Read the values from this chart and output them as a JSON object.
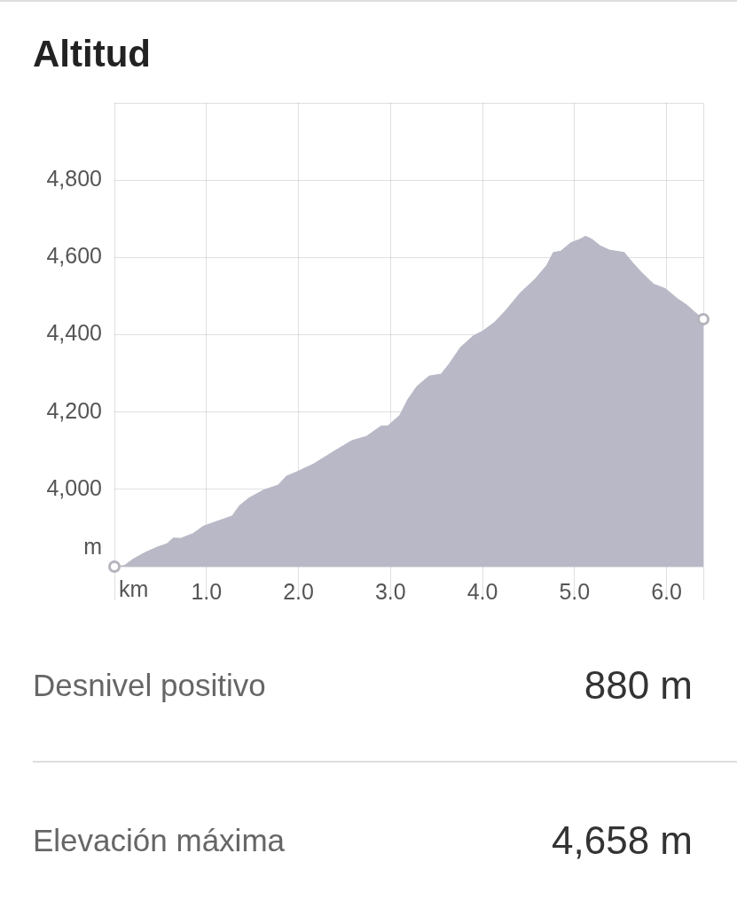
{
  "chart_data": {
    "type": "area",
    "title": "Altitud",
    "xlabel": "km",
    "ylabel": "m",
    "x": [
      0,
      0.11,
      0.2,
      0.33,
      0.46,
      0.57,
      0.64,
      0.72,
      0.85,
      0.97,
      1.1,
      1.28,
      1.36,
      1.46,
      1.62,
      1.78,
      1.87,
      1.97,
      2.16,
      2.39,
      2.58,
      2.74,
      2.9,
      2.97,
      3.1,
      3.19,
      3.29,
      3.42,
      3.55,
      3.64,
      3.76,
      3.9,
      4.0,
      4.13,
      4.25,
      4.41,
      4.58,
      4.7,
      4.77,
      4.85,
      4.96,
      5.06,
      5.12,
      5.19,
      5.28,
      5.38,
      5.54,
      5.64,
      5.73,
      5.86,
      5.99,
      6.12,
      6.22,
      6.31,
      6.4
    ],
    "series": [
      {
        "color": "#b8b8c6",
        "values": [
          3800,
          3803,
          3819,
          3836,
          3850,
          3859,
          3874,
          3873,
          3885,
          3905,
          3916,
          3931,
          3958,
          3977,
          3998,
          4011,
          4034,
          4044,
          4065,
          4099,
          4126,
          4137,
          4164,
          4164,
          4191,
          4233,
          4267,
          4293,
          4298,
          4325,
          4367,
          4397,
          4409,
          4432,
          4462,
          4508,
          4546,
          4580,
          4613,
          4616,
          4638,
          4647,
          4655,
          4647,
          4630,
          4619,
          4613,
          4584,
          4561,
          4531,
          4519,
          4493,
          4477,
          4458,
          4440
        ]
      },
      {
        "type": "scatter",
        "color": "#b4b4bc",
        "marker": "circle",
        "x": [
          0,
          6.4
        ],
        "values": [
          3800,
          4440
        ]
      }
    ],
    "xlim": [
      0,
      6.4
    ],
    "ylim": [
      3800,
      5000
    ],
    "xticks": [
      {
        "value": 0,
        "label": null
      },
      {
        "value": 1,
        "label": "1.0"
      },
      {
        "value": 2,
        "label": "2.0"
      },
      {
        "value": 3,
        "label": "3.0"
      },
      {
        "value": 4,
        "label": "4.0"
      },
      {
        "value": 5,
        "label": "5.0"
      },
      {
        "value": 6,
        "label": "6.0"
      },
      {
        "value": 6.4,
        "label": null
      }
    ],
    "yticks": [
      {
        "value": 3800,
        "label": null
      },
      {
        "value": 4000,
        "label": "4,000"
      },
      {
        "value": 4200,
        "label": "4,200"
      },
      {
        "value": 4400,
        "label": "4,400"
      },
      {
        "value": 4600,
        "label": "4,600"
      },
      {
        "value": 4800,
        "label": "4,800"
      },
      {
        "value": 5000,
        "label": null
      }
    ],
    "grid": true,
    "annotations": [
      "Desnivel positivo",
      "880 m",
      "Elevación máxima",
      "4,658 m"
    ]
  }
}
